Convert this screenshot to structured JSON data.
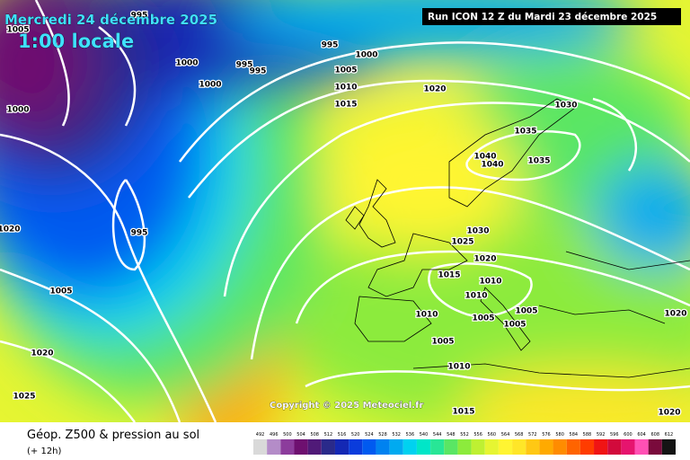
{
  "header": {
    "date": "Mercredi 24 décembre 2025",
    "time": "1:00 locale",
    "run": "Run ICON 12 Z du Mardi 23 décembre 2025"
  },
  "map": {
    "isobar_labels": [
      1005,
      995,
      1000,
      995,
      995,
      1000,
      1000,
      995,
      1000,
      1005,
      1010,
      1015,
      1020,
      1030,
      1035,
      1040,
      1040,
      1035,
      1020,
      995,
      1030,
      1025,
      1020,
      1005,
      1015,
      1010,
      1010,
      1010,
      1005,
      1005,
      1005,
      1020,
      1020,
      1005,
      1010,
      1025,
      1015,
      1020
    ],
    "copyright": "Copyright © 2025 Meteociel.fr"
  },
  "legend": {
    "title": "Géop. Z500 & pression au sol",
    "lead": "(+ 12h)",
    "scale": {
      "ticks": [
        492,
        496,
        500,
        504,
        508,
        512,
        516,
        520,
        524,
        528,
        532,
        536,
        540,
        544,
        548,
        552,
        556,
        560,
        564,
        568,
        572,
        576,
        580,
        584,
        588,
        592,
        596,
        600,
        604,
        608,
        612
      ],
      "colors": [
        "#d9d9d9",
        "#b48cc8",
        "#8c3c9c",
        "#6e1070",
        "#501a78",
        "#2a2a8a",
        "#1428b4",
        "#0a3cdc",
        "#005af0",
        "#0082f0",
        "#00aaf0",
        "#00d2f0",
        "#00e6c8",
        "#28e696",
        "#5ae664",
        "#8ceb3c",
        "#bef032",
        "#e6f532",
        "#fff532",
        "#ffe628",
        "#ffc814",
        "#ffaa00",
        "#ff8c00",
        "#ff6400",
        "#ff3c00",
        "#f01414",
        "#d20a3c",
        "#e6146e",
        "#ff50b4",
        "#7a0a3c",
        "#141414"
      ]
    }
  }
}
